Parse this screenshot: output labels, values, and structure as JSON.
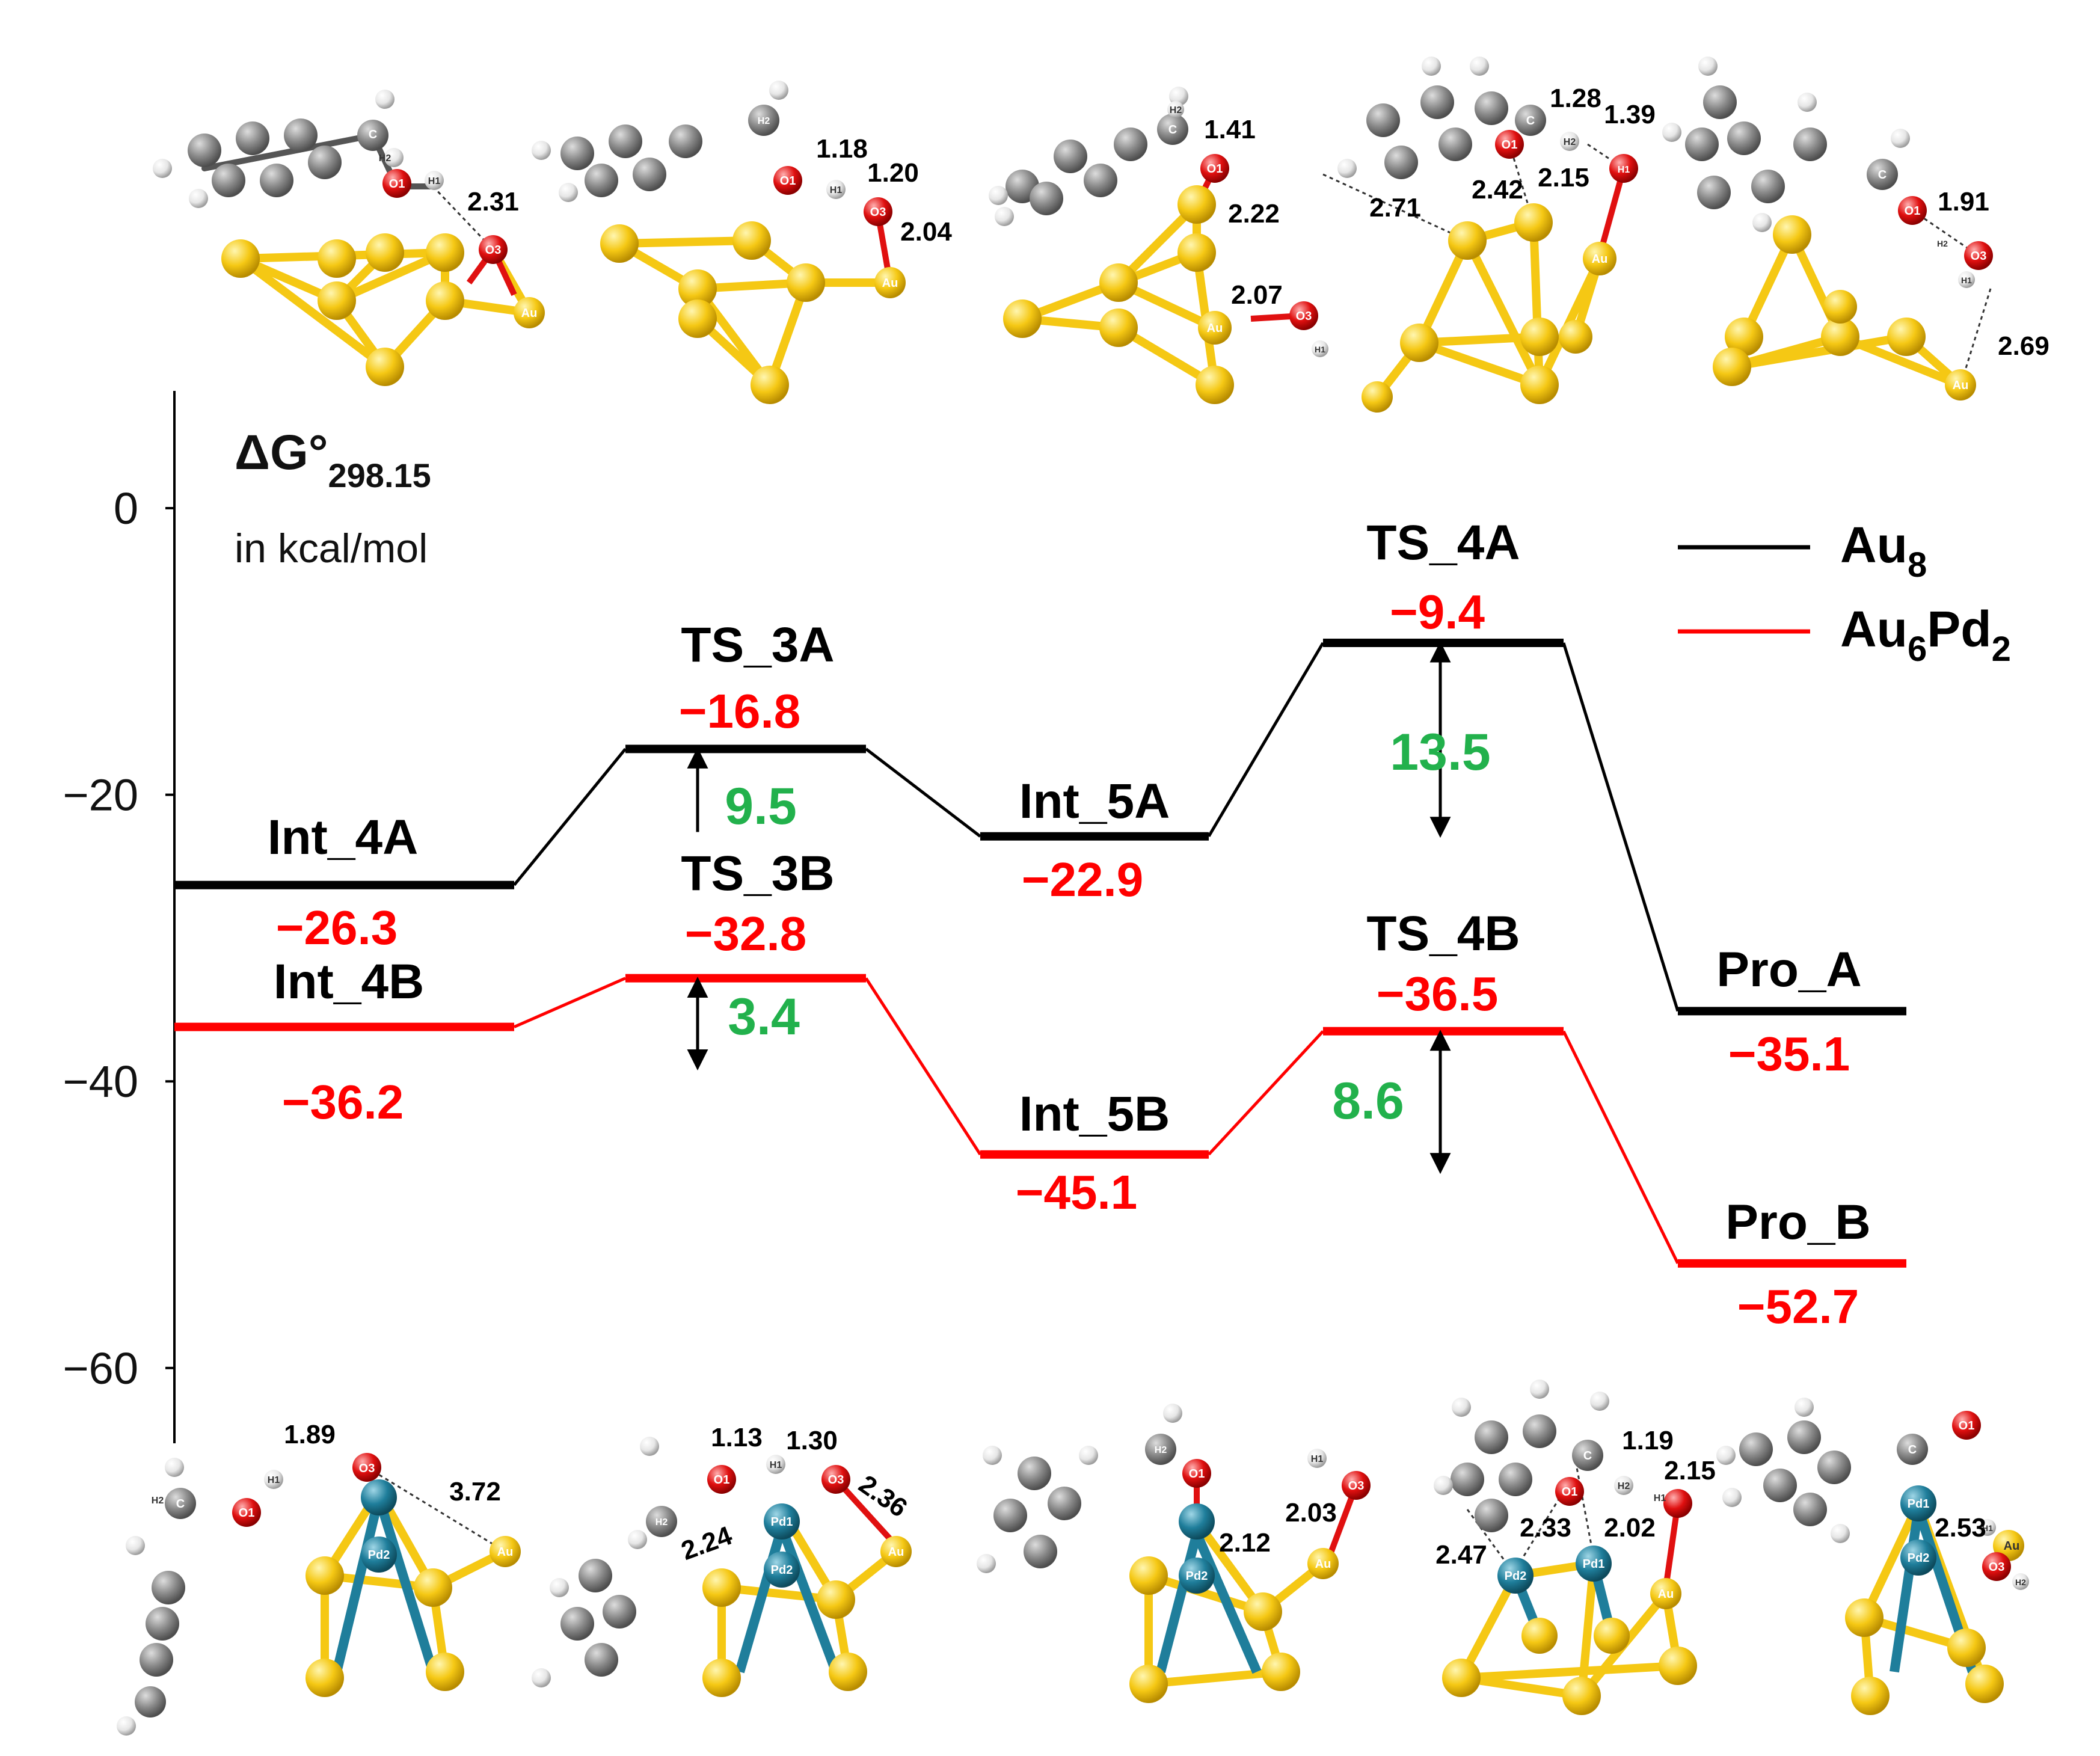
{
  "chart_data": {
    "type": "line",
    "y_axis": {
      "title_symbol": "ΔG°",
      "title_subscript": "298.15",
      "units": "in kcal/mol",
      "ticks": [
        "0",
        "−20",
        "−40",
        "−60"
      ],
      "tick_values": [
        0,
        -20,
        -40,
        -60
      ],
      "ylim": [
        -68,
        8
      ]
    },
    "x_positions": [
      1,
      2,
      3,
      4,
      5
    ],
    "legend": {
      "position": "top-right",
      "entries": [
        {
          "base": "Au",
          "sub1": "8",
          "mid": "",
          "sub2": "",
          "color": "#000000"
        },
        {
          "base": "Au",
          "sub1": "6",
          "mid": "Pd",
          "sub2": "2",
          "color": "#ff0000"
        }
      ]
    },
    "series": [
      {
        "color": "#000000",
        "states": [
          {
            "name": "Int_4A",
            "value": -26.3,
            "value_text": "−26.3"
          },
          {
            "name": "TS_3A",
            "value": -16.8,
            "value_text": "−16.8"
          },
          {
            "name": "Int_5A",
            "value": -22.9,
            "value_text": "−22.9"
          },
          {
            "name": "TS_4A",
            "value": -9.4,
            "value_text": "−9.4"
          },
          {
            "name": "Pro_A",
            "value": -35.1,
            "value_text": "−35.1"
          }
        ]
      },
      {
        "color": "#ff0000",
        "states": [
          {
            "name": "Int_4B",
            "value": -36.2,
            "value_text": "−36.2"
          },
          {
            "name": "TS_3B",
            "value": -32.8,
            "value_text": "−32.8"
          },
          {
            "name": "Int_5B",
            "value": -45.1,
            "value_text": "−45.1"
          },
          {
            "name": "TS_4B",
            "value": -36.5,
            "value_text": "−36.5"
          },
          {
            "name": "Pro_B",
            "value": -52.7,
            "value_text": "−52.7"
          }
        ]
      }
    ],
    "barriers": [
      {
        "label": "9.5",
        "from": -26.3,
        "to": -16.8,
        "color": "#22b14c"
      },
      {
        "label": "13.5",
        "from": -22.9,
        "to": -9.4,
        "color": "#22b14c"
      },
      {
        "label": "3.4",
        "from": -36.2,
        "to": -32.8,
        "color": "#22b14c"
      },
      {
        "label": "8.6",
        "from": -45.1,
        "to": -36.5,
        "color": "#22b14c"
      }
    ]
  },
  "structure_labels": {
    "top": [
      {
        "atoms": [
          "C",
          "H2",
          "O1",
          "H1",
          "O3",
          "Au"
        ],
        "distances": [
          "2.31"
        ]
      },
      {
        "atoms": [
          "H2",
          "O1",
          "H1",
          "O3",
          "Au"
        ],
        "distances": [
          "1.18",
          "1.20",
          "2.04"
        ]
      },
      {
        "atoms": [
          "H2",
          "C",
          "O1",
          "Au",
          "O3",
          "H1"
        ],
        "distances": [
          "1.41",
          "2.22",
          "2.07"
        ]
      },
      {
        "atoms": [
          "C",
          "O1",
          "H2",
          "H1",
          "Au"
        ],
        "distances": [
          "1.28",
          "1.39",
          "2.42",
          "2.15",
          "2.71"
        ]
      },
      {
        "atoms": [
          "C",
          "O1",
          "H2",
          "O3",
          "H1",
          "Au"
        ],
        "distances": [
          "1.91",
          "2.69"
        ]
      }
    ],
    "bottom": [
      {
        "atoms": [
          "H2",
          "C",
          "O1",
          "H1",
          "O3",
          "Pd2",
          "Au"
        ],
        "distances": [
          "1.89",
          "3.72"
        ]
      },
      {
        "atoms": [
          "H2",
          "O1",
          "H1",
          "O3",
          "Pd1",
          "Pd2",
          "Au"
        ],
        "distances": [
          "1.13",
          "1.30",
          "2.36",
          "2.24"
        ]
      },
      {
        "atoms": [
          "H2",
          "O1",
          "H1",
          "O3",
          "Pd2",
          "Au"
        ],
        "distances": [
          "2.03",
          "2.12"
        ]
      },
      {
        "atoms": [
          "C",
          "O1",
          "H2",
          "H1",
          "Pd2",
          "Pd1",
          "Au"
        ],
        "distances": [
          "1.19",
          "2.15",
          "2.33",
          "2.02",
          "2.47"
        ]
      },
      {
        "atoms": [
          "C",
          "O1",
          "Pd1",
          "H1",
          "Au",
          "O3",
          "H2",
          "Pd2"
        ],
        "distances": [
          "2.53"
        ]
      }
    ]
  },
  "colors": {
    "gold_atom": "#f5c814",
    "pd_atom": "#1f7e9b",
    "oxygen_atom": "#e01010",
    "carbon_atom": "#8a8a8a",
    "hydrogen_atom": "#e6e6e6",
    "barrier_text": "#22b14c",
    "energy_text": "#ff0000"
  }
}
